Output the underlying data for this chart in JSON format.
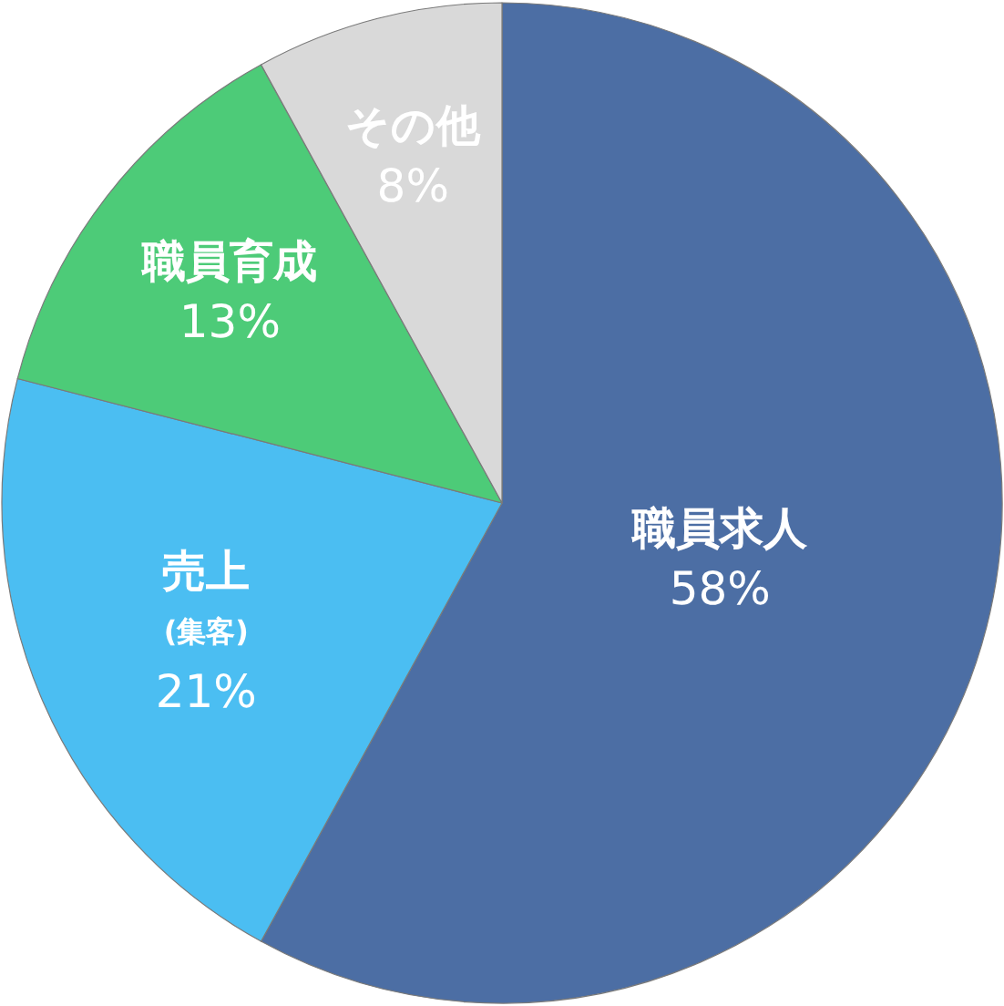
{
  "chart_data": {
    "type": "pie",
    "categories": [
      "職員求人",
      "売上\n(集客)",
      "職員育成",
      "その他"
    ],
    "values": [
      58,
      21,
      13,
      8
    ],
    "colors": [
      "#4c6ea4",
      "#4bbef2",
      "#4dcb78",
      "#d9d9d9"
    ],
    "value_labels": [
      "58%",
      "21%",
      "13%",
      "8%"
    ]
  }
}
